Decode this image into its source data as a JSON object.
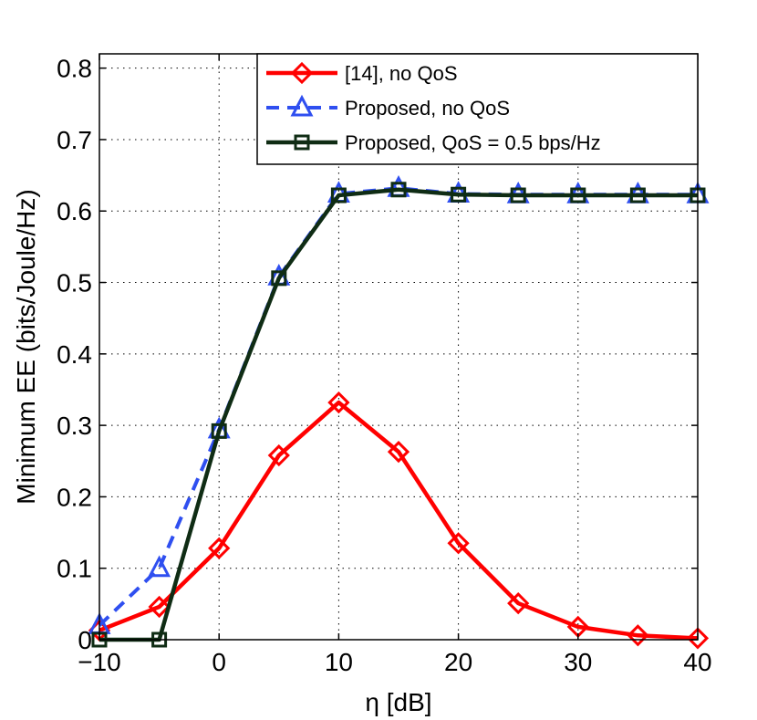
{
  "chart_data": {
    "type": "line",
    "title": "",
    "xlabel": "η [dB]",
    "ylabel": "Minimum EE (bits/Joule/Hz)",
    "xlim": [
      -10,
      40
    ],
    "ylim": [
      0,
      0.82
    ],
    "grid": true,
    "legend_position": "top-right",
    "x": [
      -10,
      -5,
      0,
      5,
      10,
      15,
      20,
      25,
      30,
      35,
      40
    ],
    "x_tick_values": [
      -10,
      0,
      10,
      20,
      30,
      40
    ],
    "x_tick_labels": [
      "−10",
      "0",
      "10",
      "20",
      "30",
      "40"
    ],
    "y_tick_values": [
      0,
      0.1,
      0.2,
      0.3,
      0.4,
      0.5,
      0.6,
      0.7,
      0.8
    ],
    "y_tick_labels": [
      "0",
      "0.1",
      "0.2",
      "0.3",
      "0.4",
      "0.5",
      "0.6",
      "0.7",
      "0.8"
    ],
    "series": [
      {
        "name": " [14], no QoS",
        "color": "#ff0000",
        "marker": "diamond",
        "dashed": false,
        "x": [
          -10,
          -5,
          0,
          5,
          10,
          15,
          20,
          25,
          30,
          35,
          40
        ],
        "values": [
          0.013,
          0.046,
          0.128,
          0.258,
          0.332,
          0.263,
          0.135,
          0.051,
          0.018,
          0.006,
          0.002
        ]
      },
      {
        "name": "Proposed, no QoS",
        "color": "#2f4ff0",
        "marker": "triangle",
        "dashed": true,
        "x": [
          -10,
          -5,
          0,
          5,
          10,
          15,
          20,
          25,
          30,
          35,
          40
        ],
        "values": [
          0.02,
          0.1,
          0.294,
          0.508,
          0.624,
          0.632,
          0.624,
          0.623,
          0.623,
          0.623,
          0.623
        ]
      },
      {
        "name": "Proposed, QoS = 0.5 bps/Hz",
        "color": "#0f2c14",
        "marker": "square",
        "dashed": false,
        "x": [
          -10,
          -5,
          0,
          5,
          10,
          15,
          20,
          25,
          30,
          35,
          40
        ],
        "values": [
          0.0,
          0.0,
          0.292,
          0.506,
          0.622,
          0.63,
          0.623,
          0.622,
          0.622,
          0.622,
          0.622
        ]
      }
    ]
  }
}
